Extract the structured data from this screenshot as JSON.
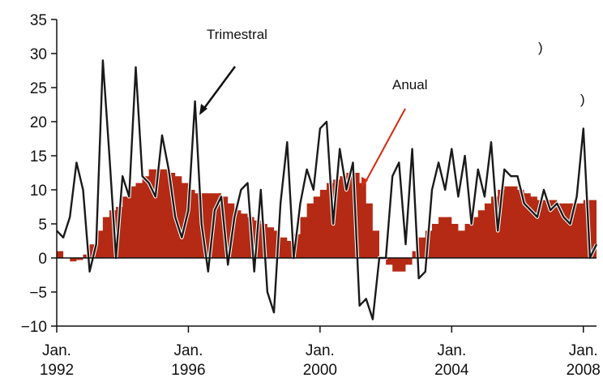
{
  "chart_data": {
    "type": "area",
    "title": "",
    "xlabel": "",
    "ylabel": "",
    "ylim": [
      -10,
      35
    ],
    "yticks": [
      35,
      30,
      25,
      20,
      15,
      10,
      5,
      0,
      -5,
      -10
    ],
    "ytick_labels": [
      "35",
      "30",
      "25",
      "20",
      "15",
      "10",
      "5",
      "0",
      "−5",
      "−10"
    ],
    "xlim": [
      1992.0,
      2008.4
    ],
    "xticks": [
      {
        "x": 1992,
        "line1": "Jan.",
        "line2": "1992"
      },
      {
        "x": 1996,
        "line1": "Jan.",
        "line2": "1996"
      },
      {
        "x": 2000,
        "line1": "Jan.",
        "line2": "2000"
      },
      {
        "x": 2004,
        "line1": "Jan.",
        "line2": "2004"
      },
      {
        "x": 2008,
        "line1": "Jan.",
        "line2": "2008"
      }
    ],
    "grid": false,
    "colors": {
      "anual": "#b52a14",
      "trimestral": "#1a1a1a",
      "annotation_arrow_anual": "#d42a12"
    },
    "series": [
      {
        "name": "Anual",
        "style": "filled-area",
        "x": [
          1992.0,
          1992.2,
          1992.4,
          1992.6,
          1992.8,
          1993.0,
          1993.2,
          1993.4,
          1993.6,
          1993.8,
          1994.0,
          1994.2,
          1994.4,
          1994.6,
          1994.8,
          1995.0,
          1995.2,
          1995.4,
          1995.6,
          1995.8,
          1996.0,
          1996.2,
          1996.4,
          1996.6,
          1996.8,
          1997.0,
          1997.2,
          1997.4,
          1997.6,
          1997.8,
          1998.0,
          1998.2,
          1998.4,
          1998.6,
          1998.8,
          1999.0,
          1999.2,
          1999.4,
          1999.6,
          1999.8,
          2000.0,
          2000.2,
          2000.4,
          2000.6,
          2000.8,
          2001.0,
          2001.2,
          2001.4,
          2001.6,
          2001.8,
          2002.0,
          2002.2,
          2002.4,
          2002.6,
          2002.8,
          2003.0,
          2003.2,
          2003.4,
          2003.6,
          2003.8,
          2004.0,
          2004.2,
          2004.4,
          2004.6,
          2004.8,
          2005.0,
          2005.2,
          2005.4,
          2005.6,
          2005.8,
          2006.0,
          2006.2,
          2006.4,
          2006.6,
          2006.8,
          2007.0,
          2007.2,
          2007.4,
          2007.6,
          2007.8,
          2008.0,
          2008.2,
          2008.4
        ],
        "values": [
          1,
          0,
          -0.5,
          -0.3,
          0.5,
          2,
          4,
          6,
          7,
          7.5,
          9,
          10.5,
          11,
          12,
          13,
          13,
          13,
          12.5,
          12,
          11,
          10,
          9.5,
          9.5,
          9.5,
          9.5,
          9,
          8,
          7,
          6.5,
          6,
          5.5,
          5,
          4.5,
          4,
          3,
          2.5,
          3.5,
          6,
          8,
          9,
          10,
          11,
          11.5,
          12,
          12.5,
          12.5,
          11,
          8,
          4,
          0,
          -1,
          -2,
          -2,
          -1,
          1,
          3,
          4,
          5,
          6,
          6,
          5,
          4,
          5,
          6,
          7,
          8,
          9,
          10,
          10.5,
          10.5,
          10,
          9.5,
          9,
          8.5,
          8.5,
          8.5,
          8,
          8,
          8,
          8,
          8.5,
          8.5,
          9
        ]
      },
      {
        "name": "Trimestral",
        "style": "line",
        "x": [
          1992.0,
          1992.2,
          1992.4,
          1992.6,
          1992.8,
          1993.0,
          1993.2,
          1993.4,
          1993.6,
          1993.8,
          1994.0,
          1994.2,
          1994.4,
          1994.6,
          1994.8,
          1995.0,
          1995.2,
          1995.4,
          1995.6,
          1995.8,
          1996.0,
          1996.2,
          1996.4,
          1996.6,
          1996.8,
          1997.0,
          1997.2,
          1997.4,
          1997.6,
          1997.8,
          1998.0,
          1998.2,
          1998.4,
          1998.6,
          1998.8,
          1999.0,
          1999.2,
          1999.4,
          1999.6,
          1999.8,
          2000.0,
          2000.2,
          2000.4,
          2000.6,
          2000.8,
          2001.0,
          2001.2,
          2001.4,
          2001.6,
          2001.8,
          2002.0,
          2002.2,
          2002.4,
          2002.6,
          2002.8,
          2003.0,
          2003.2,
          2003.4,
          2003.6,
          2003.8,
          2004.0,
          2004.2,
          2004.4,
          2004.6,
          2004.8,
          2005.0,
          2005.2,
          2005.4,
          2005.6,
          2005.8,
          2006.0,
          2006.2,
          2006.4,
          2006.6,
          2006.8,
          2007.0,
          2007.2,
          2007.4,
          2007.6,
          2007.8,
          2008.0,
          2008.2,
          2008.4
        ],
        "values": [
          4,
          3,
          6,
          14,
          10,
          -2,
          2,
          29,
          15,
          0,
          12,
          9,
          28,
          12,
          11,
          9,
          18,
          13,
          6,
          3,
          7,
          23,
          5,
          -2,
          7,
          9,
          -1,
          6,
          10,
          11,
          -2,
          10,
          -5,
          -8,
          8,
          17,
          0,
          8,
          13,
          10,
          19,
          20,
          5,
          16,
          10,
          14,
          -7,
          -6,
          -9,
          0,
          0,
          12,
          14,
          2,
          16,
          -3,
          -2,
          10,
          14,
          10,
          16,
          9,
          15,
          5,
          13,
          9,
          17,
          4,
          13,
          12,
          12,
          8,
          7,
          6,
          10,
          7,
          8,
          6,
          5,
          9,
          19,
          0,
          2
        ]
      }
    ],
    "annotations": [
      {
        "text": "Trimestral",
        "points_to_series": "Trimestral",
        "at_x": 1996.4,
        "at_y": 21
      },
      {
        "text": "Anual",
        "points_to_series": "Anual",
        "at_x": 2001.4,
        "at_y": 11.5
      }
    ],
    "stray_marks": [
      ")",
      ")"
    ]
  }
}
